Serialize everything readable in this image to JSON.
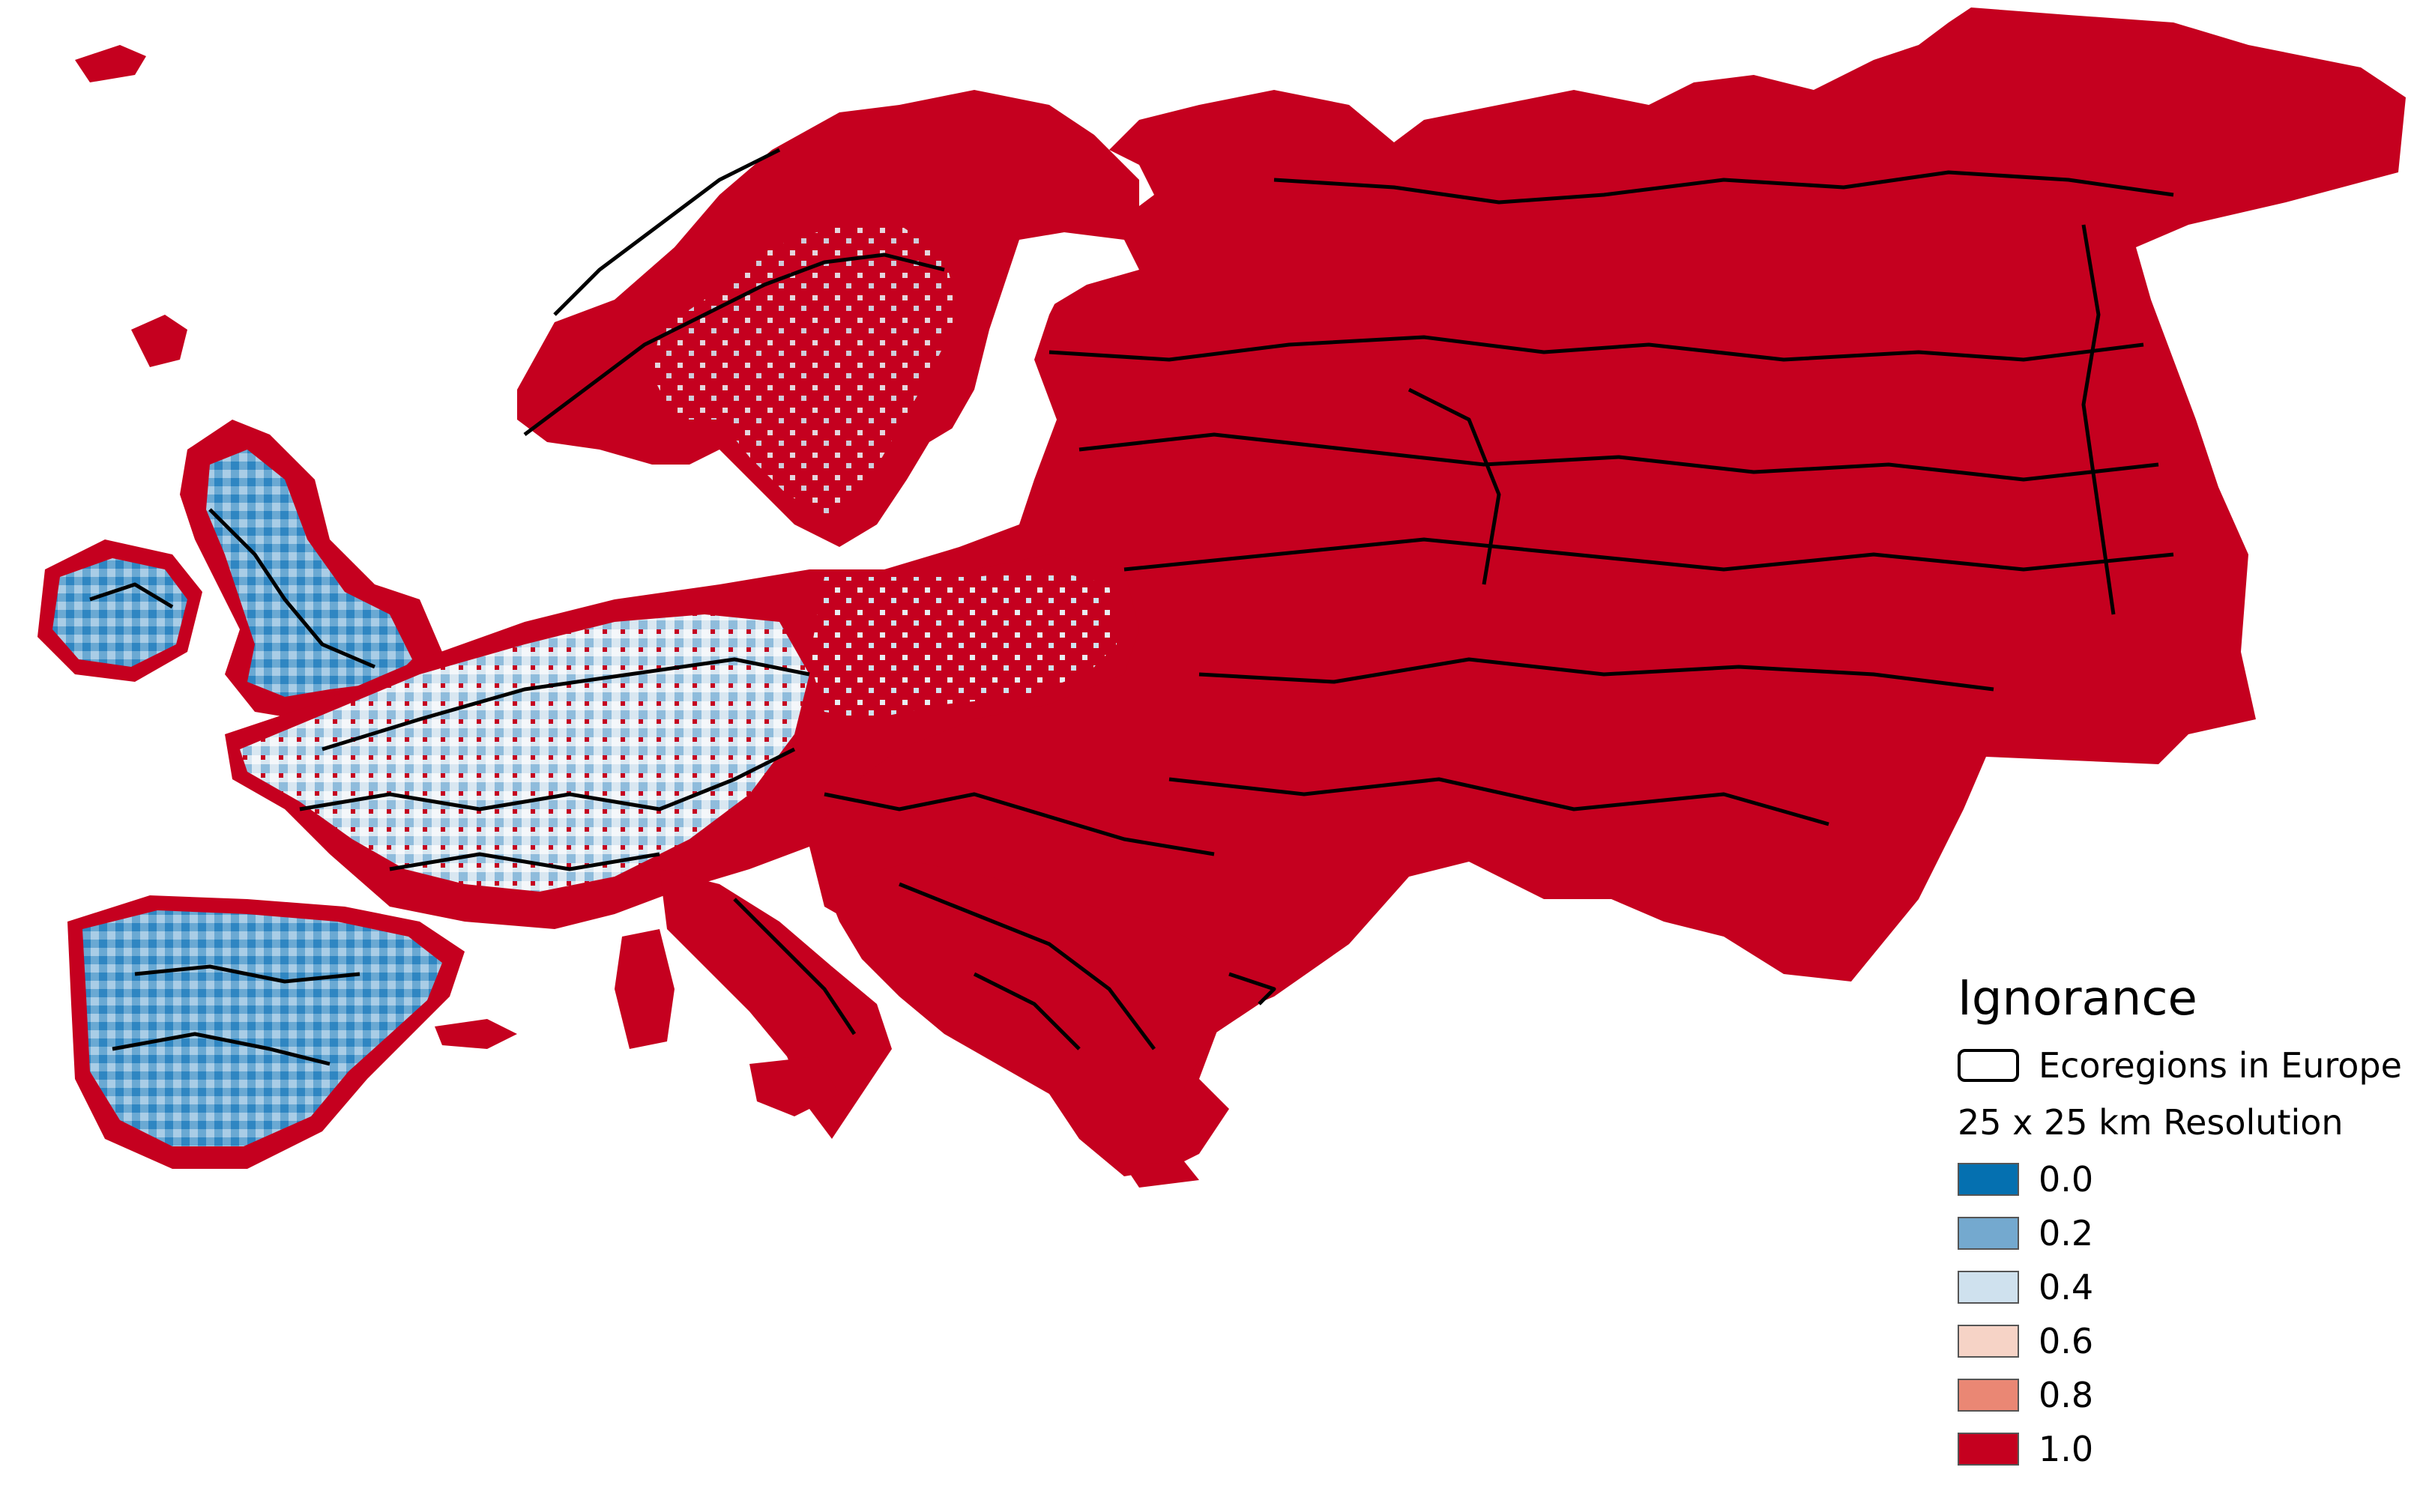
{
  "map": {
    "region_colors": {
      "land_high_ignorance": "#c5001f",
      "land_low_ignorance": "#5aa0cd",
      "land_mid_ignorance": "#d4e4ef",
      "boundary_line": "#000000",
      "background": "#ffffff"
    }
  },
  "legend": {
    "title": "Ignorance",
    "outline_label": "Ecoregions in Europe",
    "resolution_label": "25 x 25 km Resolution",
    "classes": [
      {
        "label": "0.0",
        "color": "#0570b0"
      },
      {
        "label": "0.2",
        "color": "#74a9cf"
      },
      {
        "label": "0.4",
        "color": "#cfe1ee"
      },
      {
        "label": "0.6",
        "color": "#f6d3c6"
      },
      {
        "label": "0.8",
        "color": "#ea8774"
      },
      {
        "label": "1.0",
        "color": "#c5001f"
      }
    ]
  }
}
